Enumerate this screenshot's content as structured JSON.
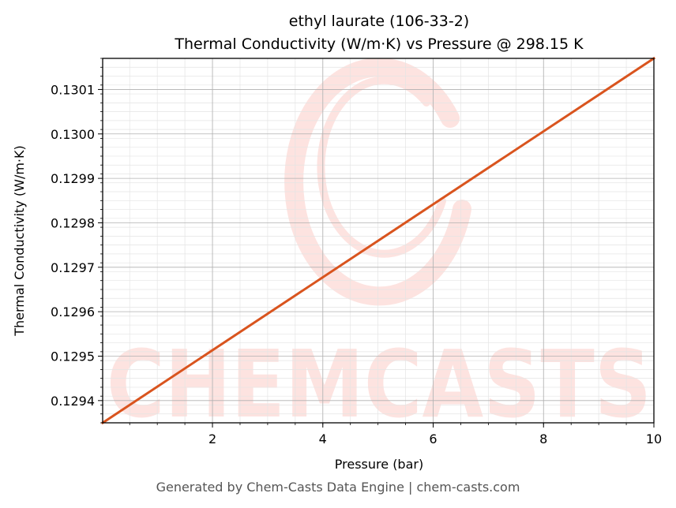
{
  "footer": "Generated by Chem-Casts Data Engine | chem-casts.com",
  "watermark": "CHEMCASTS",
  "chart_data": {
    "type": "line",
    "title_line1": "ethyl laurate (106-33-2)",
    "title_line2": "Thermal Conductivity (W/m·K) vs Pressure @ 298.15 K",
    "xlabel": "Pressure (bar)",
    "ylabel": "Thermal Conductivity (W/m·K)",
    "xlim": [
      0.01,
      10
    ],
    "ylim": [
      0.12935,
      0.13017
    ],
    "xticks": [
      2,
      4,
      6,
      8,
      10
    ],
    "xtick_labels": [
      "2",
      "4",
      "6",
      "8",
      "10"
    ],
    "yticks": [
      0.1294,
      0.1295,
      0.1296,
      0.1297,
      0.1298,
      0.1299,
      0.13,
      0.1301
    ],
    "ytick_labels": [
      "0.1294",
      "0.1295",
      "0.1296",
      "0.1297",
      "0.1298",
      "0.1299",
      "0.1300",
      "0.1301"
    ],
    "grid": true,
    "series": [
      {
        "x": [
          0.01,
          10
        ],
        "y": [
          0.12935,
          0.13017
        ],
        "color": "#d9541e"
      }
    ],
    "colors": {
      "line": "#d9541e",
      "watermark": "#fde3e0",
      "grid_major": "#b0b0b0",
      "grid_minor": "#e4e4e4"
    }
  }
}
